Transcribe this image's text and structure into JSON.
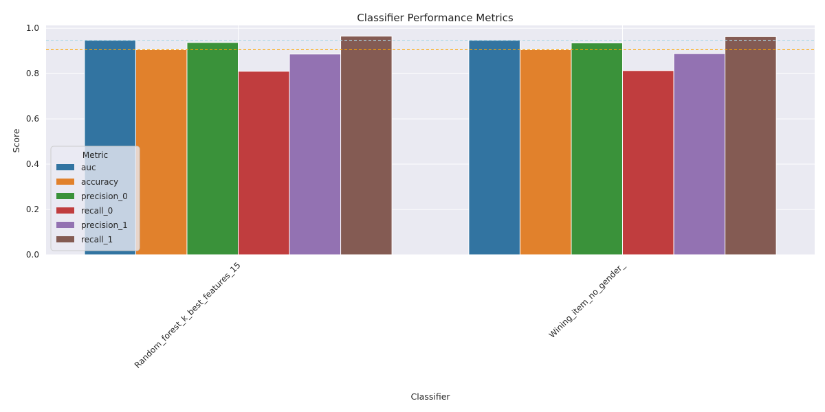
{
  "chart_data": {
    "type": "bar",
    "title": "Classifier Performance Metrics",
    "xlabel": "Classifier",
    "ylabel": "Score",
    "ylim": [
      0,
      1.0125
    ],
    "yticks": [
      "0.0",
      "0.2",
      "0.4",
      "0.6",
      "0.8",
      "1.0"
    ],
    "grid": true,
    "categories": [
      "Random_forest_k_best_features_15",
      "Wining_item_no_gender_"
    ],
    "legend": {
      "title": "Metric",
      "placement": "center-left"
    },
    "series": [
      {
        "name": "auc",
        "color": "#3274a1",
        "values": [
          0.947,
          0.947
        ]
      },
      {
        "name": "accuracy",
        "color": "#e1812c",
        "values": [
          0.905,
          0.905
        ]
      },
      {
        "name": "precision_0",
        "color": "#3a923a",
        "values": [
          0.937,
          0.935
        ]
      },
      {
        "name": "recall_0",
        "color": "#c03d3e",
        "values": [
          0.81,
          0.813
        ]
      },
      {
        "name": "precision_1",
        "color": "#9372b2",
        "values": [
          0.886,
          0.888
        ]
      },
      {
        "name": "recall_1",
        "color": "#845b53",
        "values": [
          0.965,
          0.963
        ]
      }
    ],
    "reference_lines": [
      {
        "value": 0.947,
        "color": "#add8e6",
        "style": "dashed"
      },
      {
        "value": 0.905,
        "color": "#ffa500",
        "style": "dashed"
      }
    ]
  }
}
